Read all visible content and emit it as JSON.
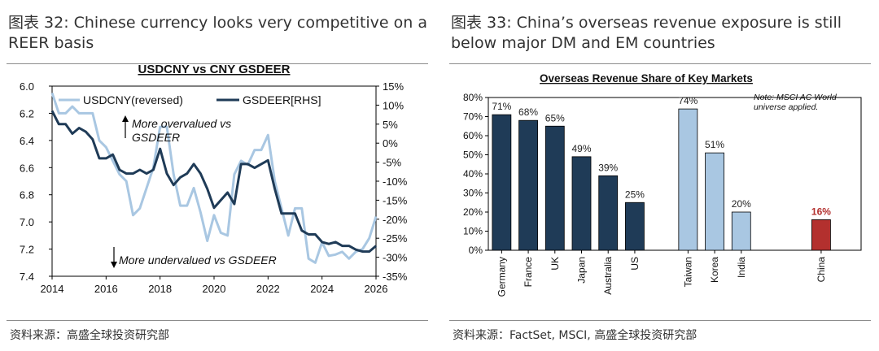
{
  "left": {
    "figure_label": "图表 32:",
    "figure_title": "Chinese currency looks very competitive on a REER basis",
    "source": "资料来源：高盛全球投资研究部",
    "chart_data": {
      "type": "line",
      "title": "USDCNY vs CNY GSDEER",
      "x_ticks": [
        "2014",
        "2016",
        "2018",
        "2020",
        "2022",
        "2024",
        "2026"
      ],
      "xlim": [
        2014,
        2026
      ],
      "y_left_ticks": [
        "6.0",
        "6.2",
        "6.4",
        "6.6",
        "6.8",
        "7.0",
        "7.2",
        "7.4"
      ],
      "y_left_lim": [
        6.0,
        7.4
      ],
      "y_left_reversed": true,
      "y_right_ticks": [
        "15%",
        "10%",
        "5%",
        "0%",
        "-5%",
        "-10%",
        "-15%",
        "-20%",
        "-25%",
        "-30%",
        "-35%"
      ],
      "y_right_lim": [
        15,
        -35
      ],
      "annotations": [
        "More overvalued vs GSDEER",
        "More undervalued vs GSDEER"
      ],
      "series": [
        {
          "name": "USDCNY(reversed)",
          "axis": "left",
          "color": "#a9c7e2",
          "x": [
            2014.0,
            2014.25,
            2014.5,
            2014.75,
            2015.0,
            2015.25,
            2015.5,
            2015.75,
            2016.0,
            2016.25,
            2016.5,
            2016.75,
            2017.0,
            2017.25,
            2017.5,
            2017.75,
            2018.0,
            2018.25,
            2018.5,
            2018.75,
            2019.0,
            2019.25,
            2019.5,
            2019.75,
            2020.0,
            2020.25,
            2020.5,
            2020.75,
            2021.0,
            2021.25,
            2021.5,
            2021.75,
            2022.0,
            2022.25,
            2022.5,
            2022.75,
            2023.0,
            2023.25,
            2023.5,
            2023.75,
            2024.0,
            2024.25,
            2024.5,
            2024.75,
            2025.0,
            2025.25,
            2025.5,
            2025.75,
            2026.0
          ],
          "y": [
            6.05,
            6.2,
            6.2,
            6.15,
            6.2,
            6.2,
            6.2,
            6.4,
            6.45,
            6.55,
            6.65,
            6.7,
            6.95,
            6.9,
            6.75,
            6.6,
            6.3,
            6.3,
            6.65,
            6.88,
            6.88,
            6.75,
            6.93,
            7.14,
            6.95,
            7.08,
            7.1,
            6.65,
            6.55,
            6.58,
            6.47,
            6.47,
            6.36,
            6.7,
            6.9,
            7.1,
            6.9,
            6.9,
            7.27,
            7.3,
            7.15,
            7.25,
            7.24,
            7.22,
            7.27,
            7.22,
            7.2,
            7.12,
            6.96
          ]
        },
        {
          "name": "GSDEER[RHS]",
          "axis": "right",
          "color": "#1f3b57",
          "x": [
            2014.0,
            2014.25,
            2014.5,
            2014.75,
            2015.0,
            2015.25,
            2015.5,
            2015.75,
            2016.0,
            2016.25,
            2016.5,
            2016.75,
            2017.0,
            2017.25,
            2017.5,
            2017.75,
            2018.0,
            2018.25,
            2018.5,
            2018.75,
            2019.0,
            2019.25,
            2019.5,
            2019.75,
            2020.0,
            2020.25,
            2020.5,
            2020.75,
            2021.0,
            2021.25,
            2021.5,
            2021.75,
            2022.0,
            2022.25,
            2022.5,
            2022.75,
            2023.0,
            2023.25,
            2023.5,
            2023.75,
            2024.0,
            2024.25,
            2024.5,
            2024.75,
            2025.0,
            2025.25,
            2025.5,
            2025.75,
            2026.0
          ],
          "y": [
            8.5,
            5,
            5,
            2.5,
            4,
            3,
            1,
            -4,
            -4,
            -3,
            -7,
            -8,
            -8,
            -7,
            -8,
            -7,
            -1.5,
            -8,
            -11,
            -9,
            -8,
            -5.5,
            -8,
            -12,
            -17,
            -15,
            -13,
            -16,
            -5.5,
            -5.5,
            -6.5,
            -5.5,
            -4.5,
            -12,
            -18.5,
            -18.5,
            -18.5,
            -23,
            -24,
            -24,
            -26,
            -26.5,
            -26,
            -27,
            -27,
            -28,
            -28.5,
            -28.5,
            -27
          ]
        }
      ]
    }
  },
  "right": {
    "figure_label": "图表 33:",
    "figure_title": "China’s overseas revenue exposure is still below major DM and EM countries",
    "source": "资料来源：FactSet, MSCI, 高盛全球投资研究部",
    "chart_data": {
      "type": "bar",
      "title": "Overseas Revenue Share of Key Markets",
      "note": "Note: MSCI AC World universe applied.",
      "ylim": [
        0,
        80
      ],
      "y_ticks": [
        "0%",
        "10%",
        "20%",
        "30%",
        "40%",
        "50%",
        "60%",
        "70%",
        "80%"
      ],
      "categories": [
        "Germany",
        "France",
        "UK",
        "Japan",
        "Australia",
        "US",
        "Taiwan",
        "Korea",
        "India",
        "China"
      ],
      "values": [
        71,
        68,
        65,
        49,
        39,
        25,
        74,
        51,
        20,
        16
      ],
      "value_labels": [
        "71%",
        "68%",
        "65%",
        "49%",
        "39%",
        "25%",
        "74%",
        "51%",
        "20%",
        "16%"
      ],
      "groups": [
        0,
        0,
        0,
        0,
        0,
        0,
        1,
        1,
        1,
        2
      ],
      "colors": [
        "#1f3b57",
        "#1f3b57",
        "#1f3b57",
        "#1f3b57",
        "#1f3b57",
        "#1f3b57",
        "#a9c7e2",
        "#a9c7e2",
        "#a9c7e2",
        "#b3302e"
      ],
      "label_colors": [
        "#222222",
        "#222222",
        "#222222",
        "#222222",
        "#222222",
        "#222222",
        "#222222",
        "#222222",
        "#222222",
        "#b3302e"
      ]
    }
  }
}
